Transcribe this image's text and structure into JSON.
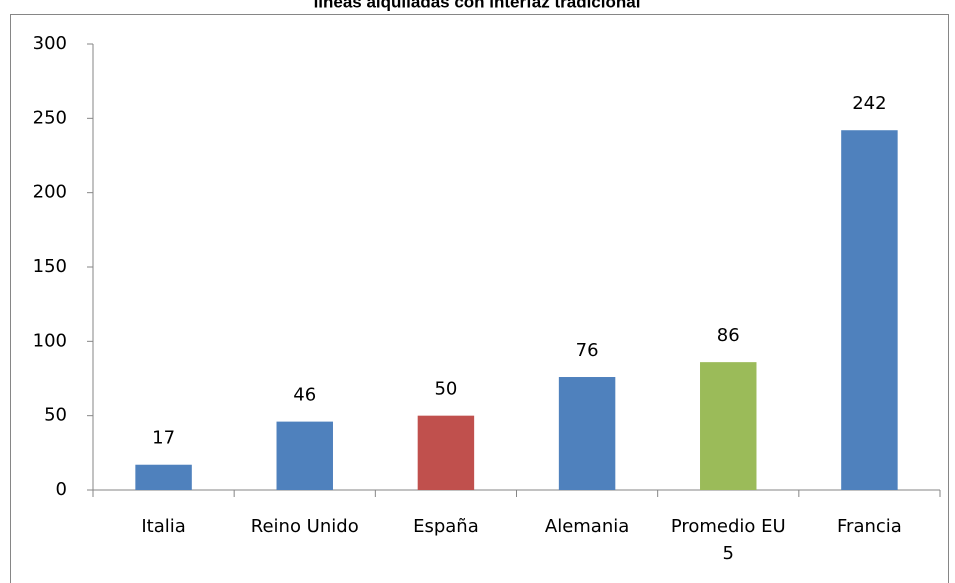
{
  "chart_data": {
    "type": "bar",
    "title": "líneas alquiladas con interfaz tradicional",
    "categories": [
      "Italia",
      "Reino Unido",
      "España",
      "Alemania",
      "Promedio EU 5",
      "Francia"
    ],
    "values": [
      17,
      46,
      50,
      76,
      86,
      242
    ],
    "colors": [
      "#4f81bd",
      "#4f81bd",
      "#c0504d",
      "#4f81bd",
      "#9bbb59",
      "#4f81bd"
    ],
    "ylim": [
      0,
      300
    ],
    "yticks": [
      0,
      50,
      100,
      150,
      200,
      250,
      300
    ],
    "grid": false
  }
}
